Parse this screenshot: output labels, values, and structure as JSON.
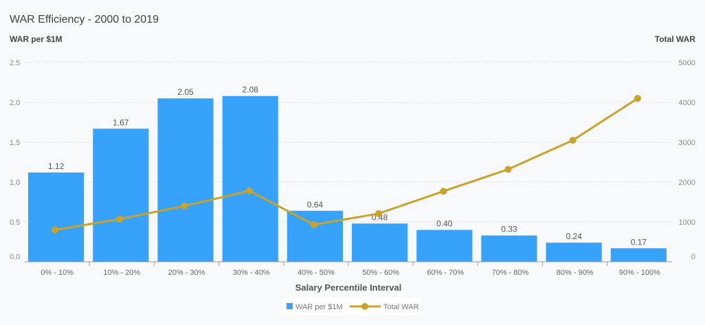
{
  "chart_data": {
    "type": "bar",
    "title": "WAR Efficiency - 2000 to 2019",
    "xlabel": "Salary Percentile Interval",
    "ylabel": "WAR per $1M",
    "y2label": "Total WAR",
    "categories": [
      "0% - 10%",
      "10% - 20%",
      "20% - 30%",
      "30% - 40%",
      "40% - 50%",
      "50% - 60%",
      "60% - 70%",
      "70% - 80%",
      "80% - 90%",
      "90% - 100%"
    ],
    "series": [
      {
        "name": "WAR per $1M",
        "type": "bar",
        "axis": "left",
        "color": "#36a2fa",
        "values": [
          1.12,
          1.67,
          2.05,
          2.08,
          0.64,
          0.48,
          0.4,
          0.33,
          0.24,
          0.17
        ],
        "labels": [
          "1.12",
          "1.67",
          "2.05",
          "2.08",
          "0.64",
          "0.48",
          "0.40",
          "0.33",
          "0.24",
          "0.17"
        ]
      },
      {
        "name": "Total WAR",
        "type": "line",
        "axis": "right",
        "color": "#c9a227",
        "values": [
          800,
          1070,
          1400,
          1780,
          930,
          1210,
          1770,
          2320,
          3050,
          4100
        ]
      }
    ],
    "ylim": [
      0,
      2.5
    ],
    "y2lim": [
      0,
      5000
    ],
    "yticks": [
      "0.0",
      "0.5",
      "1.0",
      "1.5",
      "2.0",
      "2.5"
    ],
    "y2ticks": [
      "0",
      "1000",
      "2000",
      "3000",
      "4000",
      "5000"
    ],
    "grid": true,
    "legend": "bottom-center"
  }
}
